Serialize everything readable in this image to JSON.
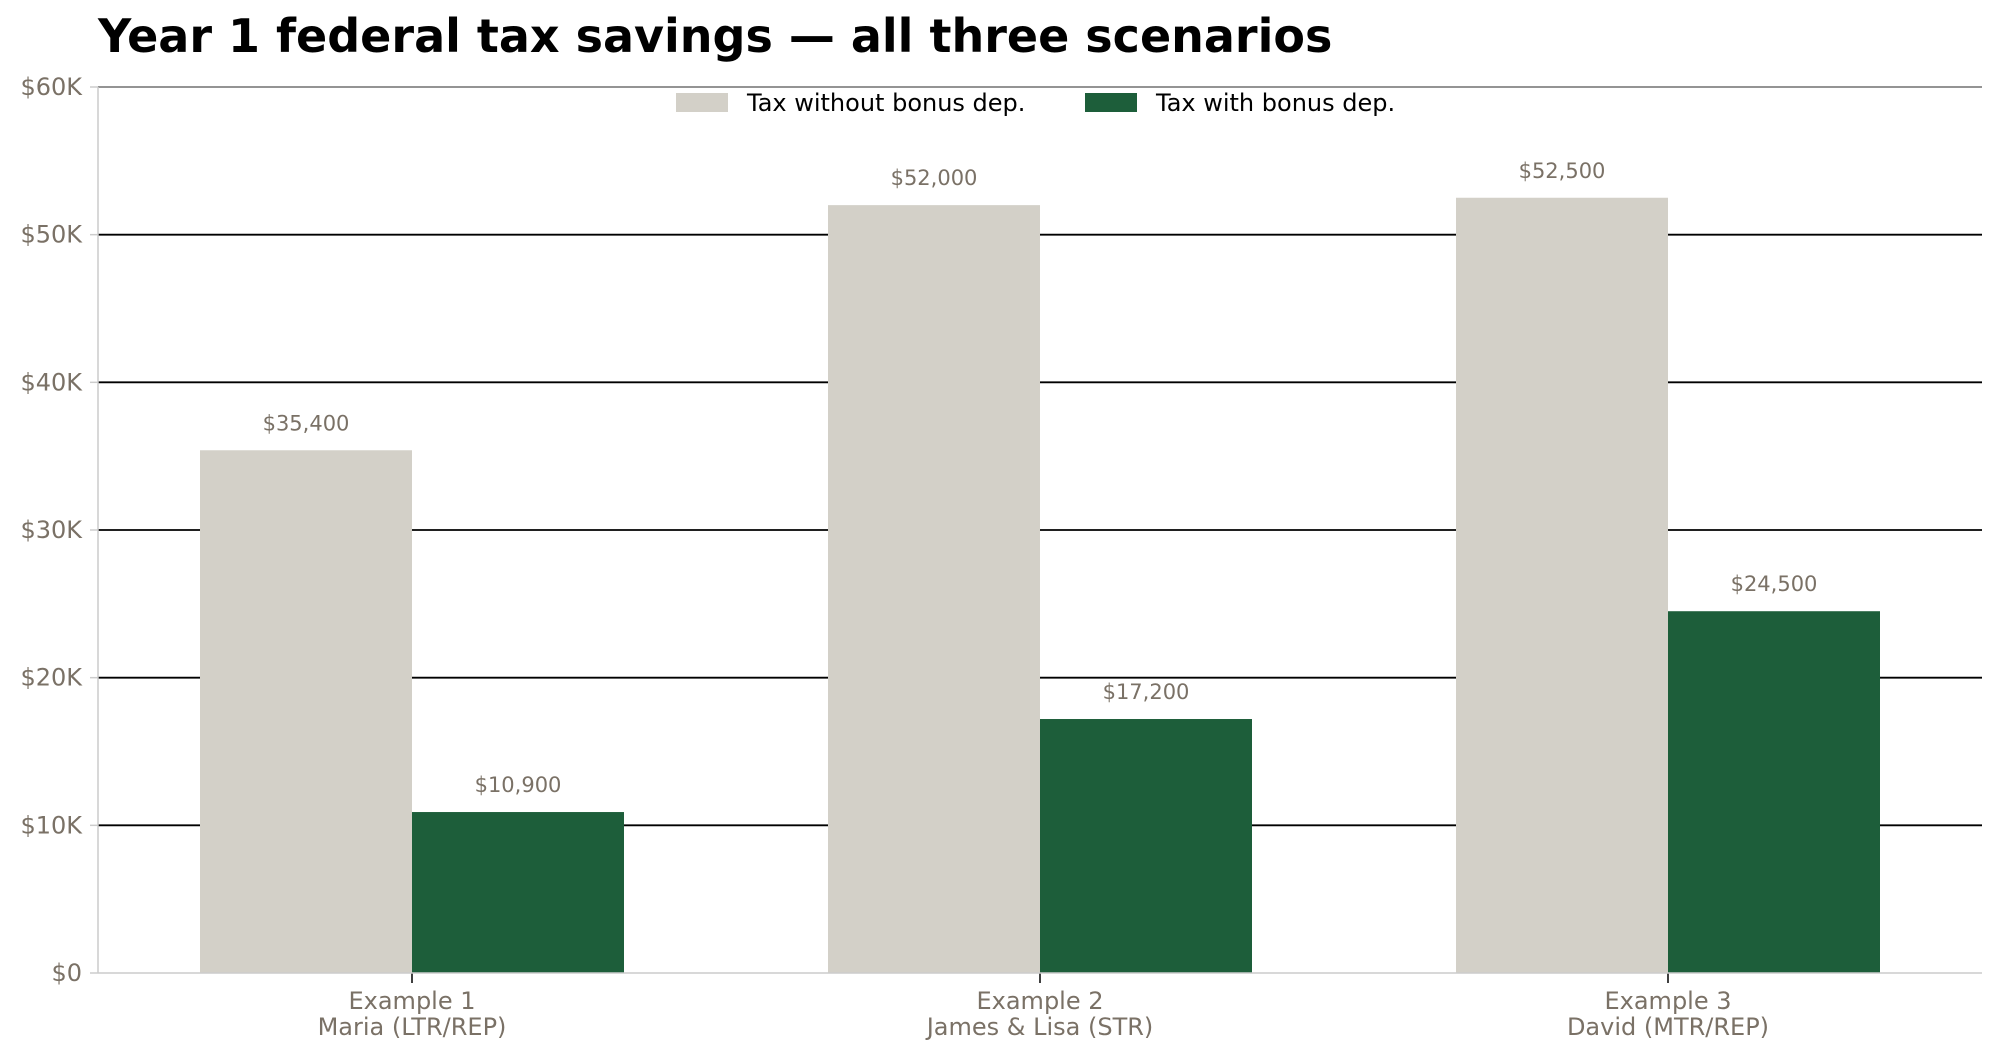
{
  "chart_data": {
    "type": "bar",
    "title": "Year 1 federal tax savings — all three scenarios",
    "xlabel": "",
    "ylabel": "",
    "categories": [
      {
        "line1": "Example 1",
        "line2": "Maria (LTR/REP)"
      },
      {
        "line1": "Example 2",
        "line2": "James & Lisa (STR)"
      },
      {
        "line1": "Example 3",
        "line2": "David (MTR/REP)"
      }
    ],
    "series": [
      {
        "name": "Tax without bonus dep.",
        "color": "#d3d0c8",
        "values": [
          35400,
          52000,
          52500
        ],
        "labels": [
          "$35,400",
          "$52,000",
          "$52,500"
        ]
      },
      {
        "name": "Tax with bonus dep.",
        "color": "#1d5e3a",
        "values": [
          10900,
          17200,
          24500
        ],
        "labels": [
          "$10,900",
          "$17,200",
          "$24,500"
        ]
      }
    ],
    "ylim": [
      0,
      60000
    ],
    "yticks": [
      0,
      10000,
      20000,
      30000,
      40000,
      50000,
      60000
    ],
    "ytick_labels": [
      "$0",
      "$10K",
      "$20K",
      "$30K",
      "$40K",
      "$50K",
      "$60K"
    ],
    "grid": "horizontal",
    "legend_position": "top-center"
  }
}
